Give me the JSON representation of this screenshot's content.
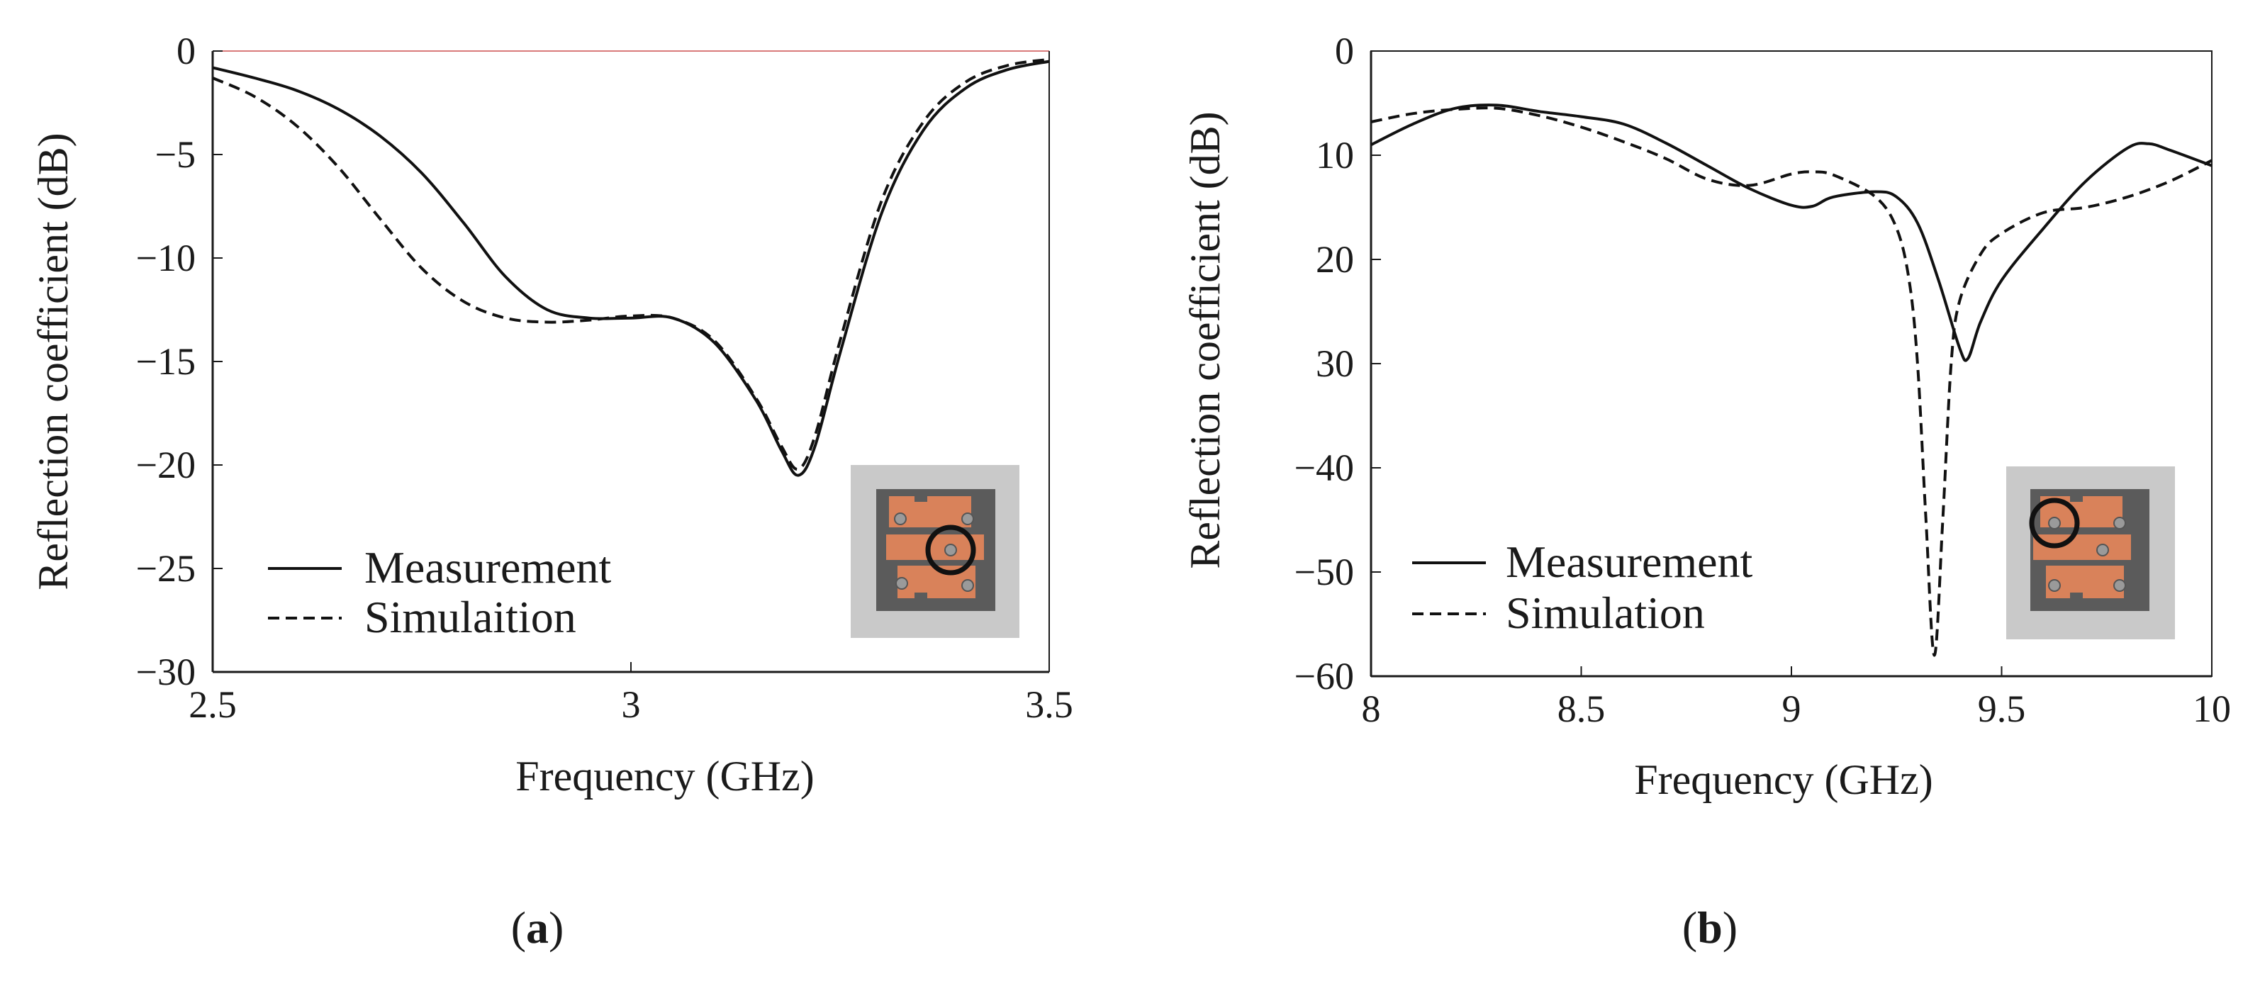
{
  "chart_data": [
    {
      "type": "line",
      "panel_label": "a",
      "xlabel": "Frequency (GHz)",
      "ylabel": "Reflection coefficient (dB)",
      "xlim": [
        2.5,
        3.5
      ],
      "ylim": [
        -30,
        0
      ],
      "xticks": [
        {
          "value": 2.5,
          "label": "2.5"
        },
        {
          "value": 3,
          "label": "3"
        },
        {
          "value": 3.5,
          "label": "3.5"
        }
      ],
      "yticks": [
        {
          "value": 0,
          "label": "0"
        },
        {
          "value": -5,
          "label": "−5"
        },
        {
          "value": -10,
          "label": "−10"
        },
        {
          "value": -15,
          "label": "−15"
        },
        {
          "value": -20,
          "label": "−20"
        },
        {
          "value": -25,
          "label": "−25"
        },
        {
          "value": -30,
          "label": "−30"
        }
      ],
      "series": [
        {
          "name": "Measurement",
          "style": "solid",
          "x": [
            2.5,
            2.55,
            2.6,
            2.65,
            2.7,
            2.75,
            2.8,
            2.85,
            2.9,
            2.95,
            3.0,
            3.05,
            3.1,
            3.15,
            3.18,
            3.2,
            3.22,
            3.25,
            3.3,
            3.35,
            3.4,
            3.45,
            3.5
          ],
          "y": [
            -0.8,
            -1.3,
            -1.9,
            -2.8,
            -4.1,
            -5.9,
            -8.3,
            -10.9,
            -12.5,
            -12.9,
            -12.9,
            -12.9,
            -14.1,
            -16.9,
            -19.3,
            -20.5,
            -19.1,
            -14.6,
            -7.8,
            -3.8,
            -1.8,
            -0.9,
            -0.5
          ]
        },
        {
          "name": "Simulaition",
          "style": "dashed",
          "x": [
            2.5,
            2.55,
            2.6,
            2.65,
            2.7,
            2.75,
            2.8,
            2.85,
            2.9,
            2.95,
            3.0,
            3.05,
            3.1,
            3.15,
            3.18,
            3.2,
            3.22,
            3.25,
            3.3,
            3.35,
            3.4,
            3.45,
            3.5
          ],
          "y": [
            -1.3,
            -2.2,
            -3.6,
            -5.6,
            -8.1,
            -10.5,
            -12.1,
            -12.9,
            -13.1,
            -13.0,
            -12.8,
            -12.9,
            -14.0,
            -16.8,
            -19.1,
            -20.2,
            -18.6,
            -14.0,
            -7.2,
            -3.4,
            -1.5,
            -0.7,
            -0.4
          ]
        }
      ],
      "legend": {
        "position": "bottom-left"
      },
      "inset": "photo of antenna board with circled feed pin (center-right)"
    },
    {
      "type": "line",
      "panel_label": "b",
      "xlabel": "Frequency (GHz)",
      "ylabel": "Reflection coefficient (dB)",
      "xlim": [
        8,
        10
      ],
      "ylim": [
        -60,
        0
      ],
      "xticks": [
        {
          "value": 8,
          "label": "8"
        },
        {
          "value": 8.5,
          "label": "8.5"
        },
        {
          "value": 9,
          "label": "9"
        },
        {
          "value": 9.5,
          "label": "9.5"
        },
        {
          "value": 10,
          "label": "10"
        }
      ],
      "yticks": [
        {
          "value": 0,
          "label": "0"
        },
        {
          "value": -10,
          "label": "10"
        },
        {
          "value": -20,
          "label": "20"
        },
        {
          "value": -30,
          "label": "30"
        },
        {
          "value": -40,
          "label": "−40"
        },
        {
          "value": -50,
          "label": "−50"
        },
        {
          "value": -60,
          "label": "−60"
        }
      ],
      "series": [
        {
          "name": "Measurement",
          "style": "solid",
          "x": [
            8.0,
            8.1,
            8.2,
            8.3,
            8.4,
            8.5,
            8.6,
            8.7,
            8.8,
            8.9,
            9.0,
            9.05,
            9.1,
            9.2,
            9.25,
            9.3,
            9.35,
            9.4,
            9.42,
            9.45,
            9.5,
            9.6,
            9.7,
            9.8,
            9.85,
            9.9,
            10.0
          ],
          "y": [
            -9.0,
            -7.0,
            -5.5,
            -5.2,
            -5.8,
            -6.3,
            -7.0,
            -8.8,
            -11.0,
            -13.2,
            -14.8,
            -14.9,
            -14.0,
            -13.5,
            -14.0,
            -16.5,
            -22.0,
            -28.5,
            -29.5,
            -26.0,
            -22.0,
            -17.0,
            -12.5,
            -9.3,
            -8.9,
            -9.5,
            -11.0
          ]
        },
        {
          "name": "Simulation",
          "style": "dashed",
          "x": [
            8.0,
            8.1,
            8.2,
            8.3,
            8.4,
            8.5,
            8.6,
            8.7,
            8.8,
            8.9,
            9.0,
            9.05,
            9.1,
            9.2,
            9.25,
            9.28,
            9.3,
            9.32,
            9.34,
            9.36,
            9.38,
            9.4,
            9.45,
            9.5,
            9.6,
            9.7,
            9.8,
            9.9,
            10.0
          ],
          "y": [
            -6.8,
            -6.0,
            -5.6,
            -5.5,
            -6.2,
            -7.3,
            -8.7,
            -10.3,
            -12.3,
            -12.9,
            -11.8,
            -11.6,
            -11.9,
            -14.0,
            -17.0,
            -22.0,
            -30.0,
            -45.0,
            -58.0,
            -45.0,
            -30.0,
            -24.0,
            -19.5,
            -17.5,
            -15.5,
            -15.0,
            -14.0,
            -12.5,
            -10.5
          ]
        }
      ],
      "legend": {
        "position": "bottom-left"
      },
      "inset": "photo of antenna board with circled feed pin (top-left)"
    }
  ]
}
